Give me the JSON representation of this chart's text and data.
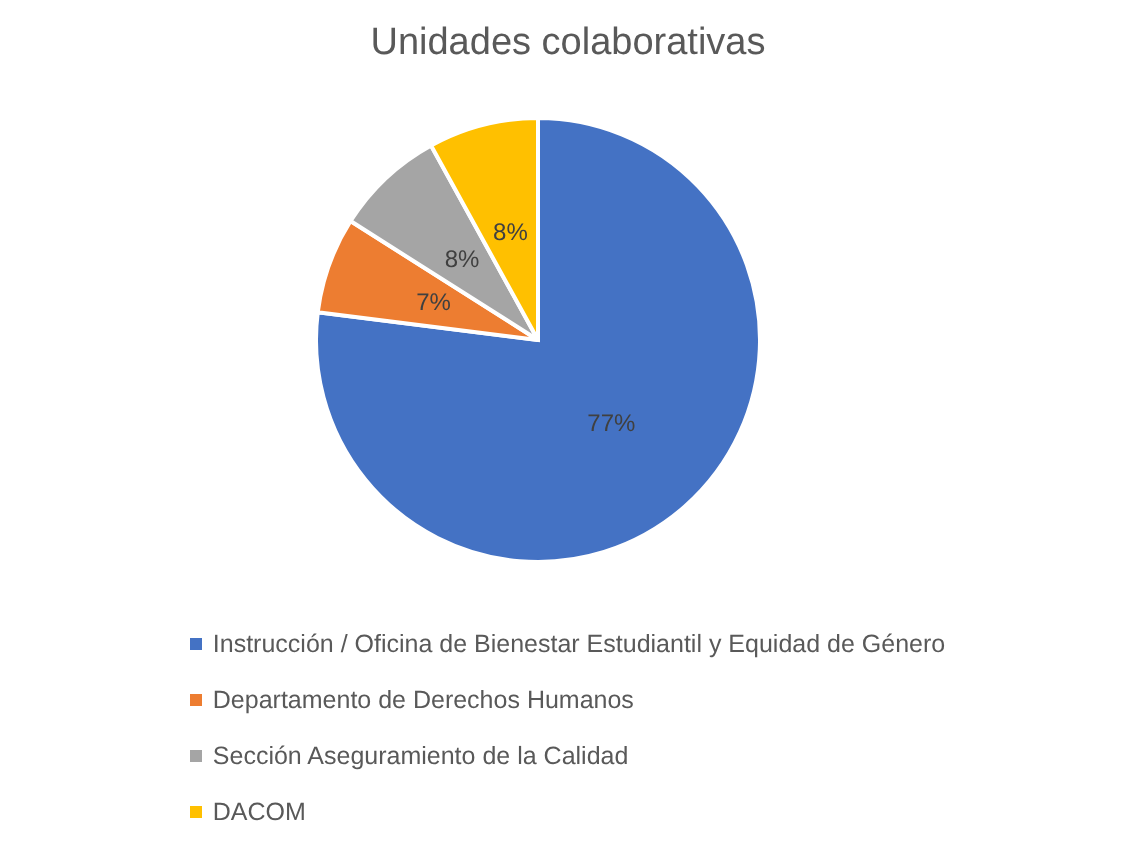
{
  "chart_data": {
    "type": "pie",
    "title": "Unidades colaborativas",
    "categories": [
      "Instrucción / Oficina de Bienestar Estudiantil y Equidad de Género",
      "Departamento de Derechos Humanos",
      "Sección Aseguramiento de la Calidad",
      "DACOM"
    ],
    "values": [
      77,
      7,
      8,
      8
    ],
    "colors": [
      "#4472c4",
      "#ed7d31",
      "#a5a5a5",
      "#ffc000"
    ],
    "value_labels": [
      "77%",
      "7%",
      "8%",
      "8%"
    ],
    "legend": "bottom"
  }
}
